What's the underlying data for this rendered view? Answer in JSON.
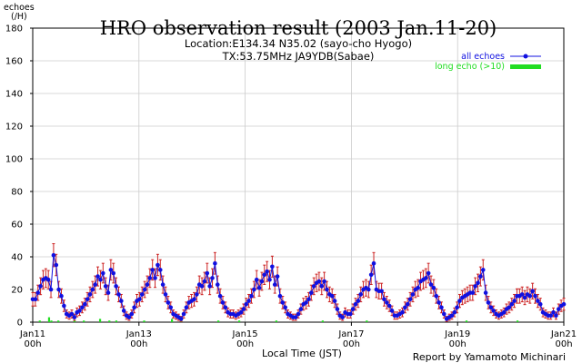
{
  "chart_data": {
    "type": "line",
    "title": "HRO observation result (2003 Jan.11-20)",
    "subtitle_lines": [
      "Location:E134.34 N35.02 (sayo-cho Hyogo)",
      "TX:53.75MHz JA9YDB(Sabae)"
    ],
    "ylabel_lines": [
      "echoes",
      "(/H)"
    ],
    "xlabel": "Local Time (JST)",
    "credit": "Report by Yamamoto Michinari",
    "ylim": [
      0,
      180
    ],
    "ytick_values": [
      0,
      20,
      40,
      60,
      80,
      100,
      120,
      140,
      160,
      180
    ],
    "ytick_labels": [
      "0",
      "20",
      "40",
      "60",
      "80",
      "100",
      "120",
      "140",
      "160",
      "180"
    ],
    "xlim_hours": [
      0,
      240
    ],
    "xticks": [
      {
        "hour": 0,
        "line1": "Jan11",
        "line2": "00h"
      },
      {
        "hour": 48,
        "line1": "Jan13",
        "line2": "00h"
      },
      {
        "hour": 96,
        "line1": "Jan15",
        "line2": "00h"
      },
      {
        "hour": 144,
        "line1": "Jan17",
        "line2": "00h"
      },
      {
        "hour": 192,
        "line1": "Jan19",
        "line2": "00h"
      },
      {
        "hour": 240,
        "line1": "Jan21",
        "line2": "00h"
      }
    ],
    "grid": true,
    "legend_position": "top-right",
    "colors": {
      "all_echoes": "#1010e0",
      "error_bars": "#cc2222",
      "long_echo": "#22dd22",
      "grid": "#cccccc"
    },
    "series": [
      {
        "name": "all echoes",
        "style": "line-markers-errorbars",
        "values": [
          14,
          14,
          18,
          22,
          26,
          27,
          26,
          20,
          41,
          35,
          20,
          16,
          10,
          5,
          4,
          5,
          3,
          6,
          7,
          9,
          11,
          14,
          17,
          20,
          23,
          28,
          26,
          30,
          22,
          18,
          32,
          30,
          22,
          17,
          13,
          7,
          4,
          3,
          5,
          9,
          13,
          14,
          17,
          20,
          23,
          27,
          32,
          27,
          35,
          32,
          23,
          17,
          12,
          9,
          5,
          4,
          3,
          2,
          5,
          9,
          12,
          13,
          14,
          17,
          23,
          22,
          25,
          30,
          22,
          27,
          36,
          23,
          16,
          12,
          9,
          6,
          5,
          5,
          4,
          5,
          6,
          8,
          11,
          13,
          16,
          20,
          26,
          21,
          25,
          29,
          31,
          26,
          34,
          23,
          28,
          16,
          12,
          9,
          5,
          4,
          3,
          3,
          5,
          8,
          11,
          12,
          14,
          18,
          22,
          24,
          25,
          22,
          25,
          20,
          17,
          16,
          13,
          8,
          4,
          3,
          6,
          5,
          5,
          8,
          11,
          13,
          17,
          20,
          21,
          20,
          29,
          36,
          20,
          19,
          19,
          14,
          12,
          10,
          7,
          4,
          4,
          5,
          6,
          9,
          11,
          14,
          17,
          20,
          21,
          25,
          26,
          27,
          30,
          23,
          21,
          16,
          12,
          9,
          5,
          2,
          3,
          4,
          6,
          9,
          13,
          15,
          16,
          17,
          18,
          18,
          22,
          24,
          28,
          32,
          18,
          12,
          9,
          7,
          5,
          4,
          5,
          6,
          8,
          9,
          11,
          13,
          16,
          16,
          17,
          15,
          17,
          16,
          19,
          16,
          13,
          11,
          6,
          5,
          4,
          4,
          6,
          4,
          8,
          10,
          11
        ]
      },
      {
        "name": "long echo (>10)",
        "style": "bars",
        "values": [
          0,
          0,
          0,
          1,
          0,
          0,
          0,
          3,
          1,
          0,
          0,
          1,
          0,
          0,
          0,
          0,
          0,
          0,
          1,
          0,
          0,
          0,
          1,
          0,
          0,
          0,
          0,
          0,
          0,
          2,
          0,
          0,
          0,
          1,
          0,
          0,
          1,
          0,
          0,
          0,
          0,
          0,
          0,
          0,
          0,
          0,
          0,
          0,
          1,
          0,
          0,
          0,
          0,
          0,
          0,
          0,
          0,
          0,
          0,
          0,
          2,
          0,
          0,
          0,
          1,
          0,
          0,
          0,
          0,
          0,
          0,
          0,
          0,
          0,
          0,
          0,
          0,
          0,
          0,
          0,
          1,
          0,
          0,
          0,
          0,
          0,
          0,
          0,
          0,
          1,
          0,
          0,
          0,
          0,
          0,
          0,
          0,
          0,
          0,
          0,
          0,
          0,
          0,
          0,
          0,
          1,
          0,
          0,
          0,
          0,
          0,
          0,
          0,
          0,
          0,
          0,
          0,
          0,
          0,
          0,
          0,
          0,
          0,
          0,
          0,
          1,
          0,
          0,
          0,
          0,
          0,
          0,
          0,
          0,
          0,
          0,
          0,
          0,
          0,
          0,
          0,
          0,
          0,
          0,
          1,
          0,
          0,
          0,
          0,
          0,
          0,
          0,
          0,
          0,
          0,
          0,
          0,
          0,
          0,
          0,
          0,
          0,
          0,
          0,
          0,
          0,
          0,
          0,
          0,
          0,
          0,
          0,
          0,
          0,
          0,
          0,
          0,
          0,
          0,
          0,
          0,
          0,
          0,
          0,
          0,
          0,
          0,
          1,
          0,
          0,
          0,
          0,
          0,
          0,
          0,
          0,
          0,
          0,
          0,
          0,
          0,
          0,
          0,
          0,
          0,
          0,
          0,
          0,
          0,
          1,
          0,
          0,
          0,
          0,
          0,
          0,
          0,
          0,
          0,
          0,
          0,
          0,
          0,
          0,
          0,
          0,
          0,
          0,
          0,
          0
        ]
      }
    ]
  }
}
